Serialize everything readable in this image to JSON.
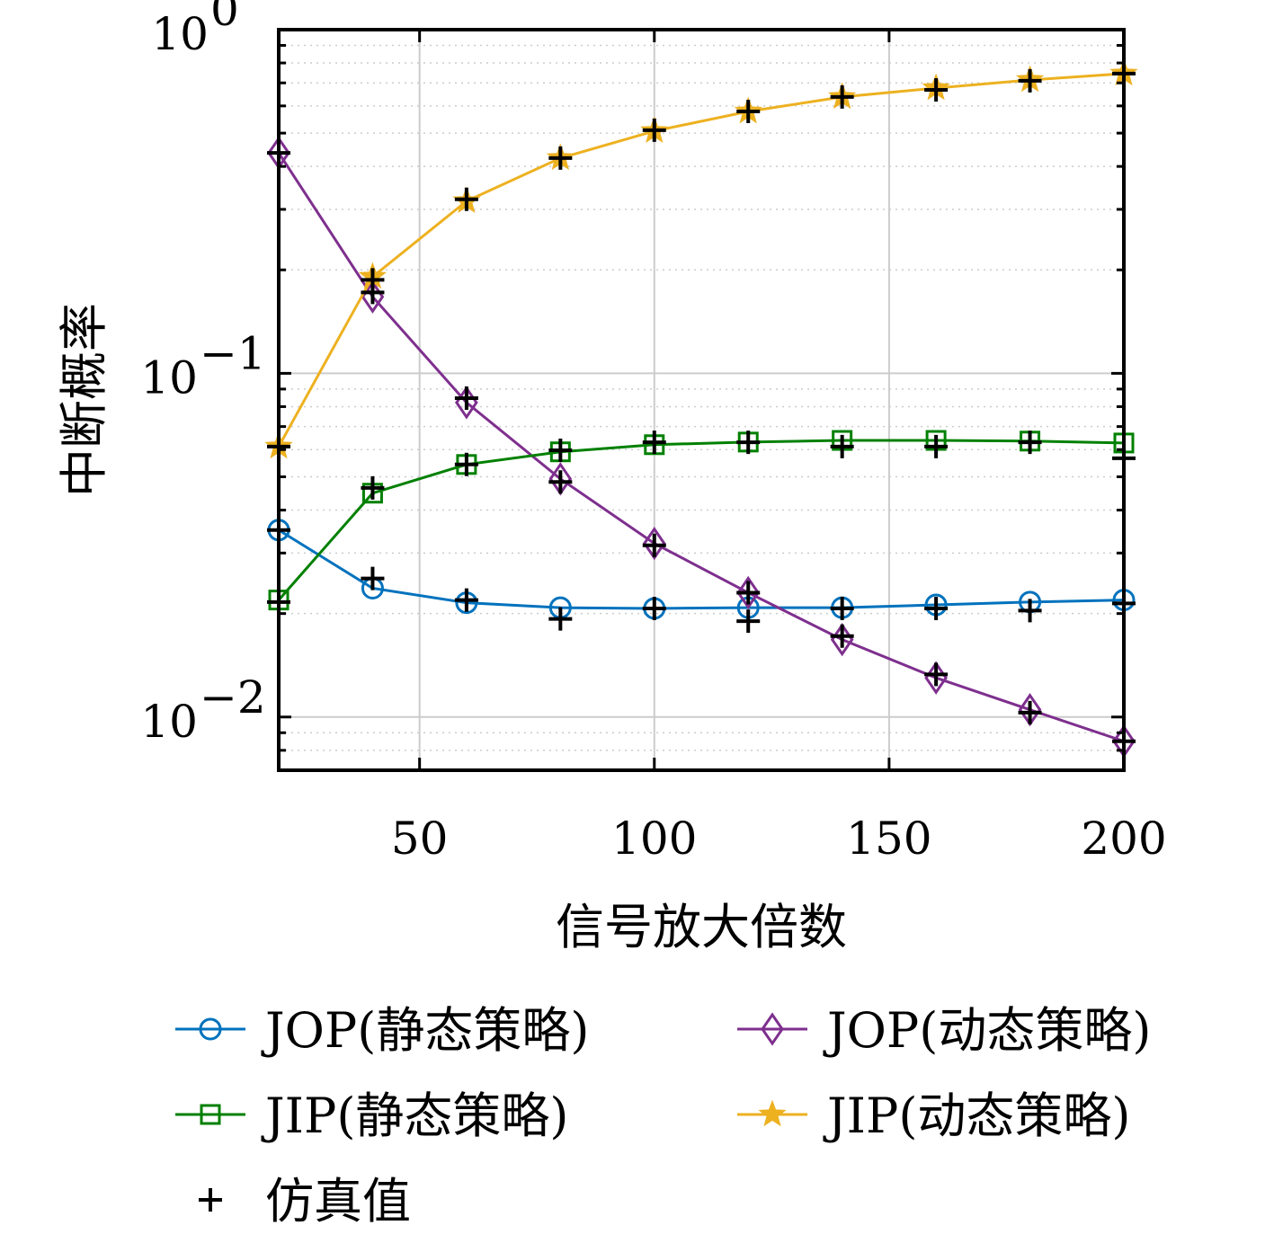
{
  "chart_data": {
    "type": "line",
    "title": "",
    "xlabel": "信号放大倍数",
    "ylabel": "中断概率",
    "xlim": [
      20,
      200
    ],
    "ylim": [
      0.007,
      1
    ],
    "yscale": "log",
    "grid": true,
    "legend_position": "bottom",
    "x_ticks": [
      "50",
      "100",
      "150",
      "200"
    ],
    "x_tick_values": [
      50,
      100,
      150,
      200
    ],
    "y_ticks": [
      {
        "base": "10",
        "exp": "0",
        "value": 1
      },
      {
        "base": "10",
        "exp": "−1",
        "value": 0.1
      },
      {
        "base": "10",
        "exp": "−2",
        "value": 0.01
      }
    ],
    "x": [
      20,
      40,
      60,
      80,
      100,
      120,
      140,
      160,
      180,
      200
    ],
    "series": [
      {
        "name": "JOP(静态策略)",
        "color": "#0072BD",
        "marker": "circle",
        "values": [
          0.035,
          0.0237,
          0.0215,
          0.0208,
          0.0207,
          0.0208,
          0.0208,
          0.0212,
          0.0216,
          0.0219
        ]
      },
      {
        "name": "JOP(动态策略)",
        "color": "#7E2F8E",
        "marker": "diamond",
        "values": [
          0.438,
          0.167,
          0.0822,
          0.0493,
          0.032,
          0.023,
          0.0168,
          0.013,
          0.0105,
          0.0085
        ]
      },
      {
        "name": "JIP(静态策略)",
        "color": "#008000",
        "marker": "square",
        "values": [
          0.0219,
          0.0448,
          0.0543,
          0.0591,
          0.062,
          0.0631,
          0.0638,
          0.0638,
          0.0635,
          0.0627
        ]
      },
      {
        "name": "JIP(动态策略)",
        "color": "#EDB120",
        "marker": "star",
        "values": [
          0.0612,
          0.191,
          0.317,
          0.423,
          0.507,
          0.578,
          0.637,
          0.676,
          0.714,
          0.745
        ]
      },
      {
        "name": "仿真值",
        "color": "#000000",
        "marker": "plus",
        "line": false,
        "groups": [
          [
            0.035,
            0.0253,
            0.0219,
            0.0193,
            0.0207,
            0.019,
            0.0207,
            0.0207,
            0.0204,
            0.0214
          ],
          [
            0.438,
            0.172,
            0.0847,
            0.0483,
            0.0316,
            0.023,
            0.0172,
            0.0133,
            0.0103,
            0.0085
          ],
          [
            0.0216,
            0.0464,
            0.0543,
            0.0597,
            0.063,
            0.063,
            0.0612,
            0.0612,
            0.063,
            0.0566
          ],
          [
            0.0612,
            0.187,
            0.321,
            0.423,
            0.51,
            0.578,
            0.637,
            0.668,
            0.71,
            0.745
          ]
        ]
      }
    ]
  }
}
